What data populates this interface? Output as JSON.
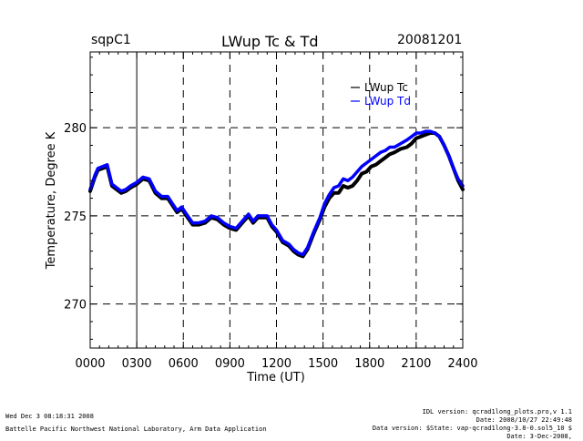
{
  "header": {
    "site": "sqpC1",
    "title": "LWup Tc & Td",
    "date": "20081201"
  },
  "chart_data": {
    "type": "line",
    "title": "LWup Tc & Td",
    "xlabel": "Time (UT)",
    "ylabel": "Temperature, Degree K",
    "xlim": [
      0,
      2400
    ],
    "ylim": [
      267.5,
      284.3
    ],
    "xticks": [
      0,
      300,
      600,
      900,
      1200,
      1500,
      1800,
      2100,
      2400
    ],
    "xtick_labels": [
      "0000",
      "0300",
      "0600",
      "0900",
      "1200",
      "1500",
      "1800",
      "2100",
      "2400"
    ],
    "yticks": [
      270,
      275,
      280
    ],
    "ytick_labels": [
      "270",
      "275",
      "280"
    ],
    "grid": true,
    "legend_position": "top-right",
    "series": [
      {
        "name": "LWup Tc",
        "color": "#000000",
        "x": [
          0,
          30,
          50,
          80,
          110,
          140,
          170,
          200,
          230,
          260,
          300,
          340,
          380,
          420,
          460,
          500,
          530,
          560,
          590,
          620,
          660,
          700,
          740,
          780,
          820,
          860,
          900,
          940,
          980,
          1020,
          1050,
          1080,
          1110,
          1140,
          1170,
          1200,
          1240,
          1280,
          1310,
          1340,
          1370,
          1400,
          1440,
          1480,
          1510,
          1540,
          1570,
          1600,
          1630,
          1660,
          1690,
          1720,
          1750,
          1780,
          1810,
          1840,
          1870,
          1900,
          1930,
          1960,
          2000,
          2040,
          2070,
          2100,
          2130,
          2160,
          2190,
          2220,
          2250,
          2280,
          2310,
          2340,
          2370,
          2400
        ],
        "y": [
          276.4,
          277.2,
          277.6,
          277.7,
          277.8,
          276.7,
          276.5,
          276.3,
          276.4,
          276.6,
          276.8,
          277.1,
          277.0,
          276.3,
          276.0,
          276.0,
          275.6,
          275.2,
          275.4,
          275.0,
          274.5,
          274.5,
          274.6,
          274.9,
          274.8,
          274.5,
          274.3,
          274.2,
          274.6,
          275.0,
          274.6,
          274.9,
          274.9,
          274.9,
          274.4,
          274.1,
          273.5,
          273.3,
          273.0,
          272.8,
          272.7,
          273.1,
          274.0,
          274.8,
          275.5,
          276.0,
          276.3,
          276.3,
          276.7,
          276.6,
          276.7,
          277.0,
          277.4,
          277.5,
          277.8,
          277.9,
          278.1,
          278.3,
          278.5,
          278.6,
          278.8,
          278.9,
          279.1,
          279.4,
          279.5,
          279.6,
          279.7,
          279.7,
          279.5,
          279.0,
          278.4,
          277.7,
          277.0,
          276.5
        ]
      },
      {
        "name": "LWup Td",
        "color": "#0000ff",
        "x": [
          0,
          30,
          50,
          80,
          110,
          140,
          170,
          200,
          230,
          260,
          300,
          340,
          380,
          420,
          460,
          500,
          530,
          560,
          590,
          620,
          660,
          700,
          740,
          780,
          820,
          860,
          900,
          940,
          980,
          1020,
          1050,
          1080,
          1110,
          1140,
          1170,
          1200,
          1240,
          1280,
          1310,
          1340,
          1370,
          1400,
          1440,
          1480,
          1510,
          1540,
          1570,
          1600,
          1630,
          1660,
          1690,
          1720,
          1750,
          1780,
          1810,
          1840,
          1870,
          1900,
          1930,
          1960,
          2000,
          2040,
          2070,
          2100,
          2130,
          2160,
          2190,
          2220,
          2250,
          2280,
          2310,
          2340,
          2370,
          2400
        ],
        "y": [
          276.5,
          277.3,
          277.7,
          277.8,
          277.9,
          276.8,
          276.6,
          276.4,
          276.5,
          276.7,
          276.9,
          277.2,
          277.1,
          276.4,
          276.1,
          276.1,
          275.7,
          275.3,
          275.5,
          275.1,
          274.6,
          274.6,
          274.7,
          275.0,
          274.9,
          274.6,
          274.4,
          274.3,
          274.7,
          275.1,
          274.7,
          275.0,
          275.0,
          275.0,
          274.5,
          274.2,
          273.6,
          273.4,
          273.1,
          272.9,
          272.8,
          273.2,
          274.1,
          274.9,
          275.7,
          276.2,
          276.6,
          276.7,
          277.1,
          277.0,
          277.2,
          277.5,
          277.8,
          278.0,
          278.2,
          278.4,
          278.6,
          278.7,
          278.9,
          278.9,
          279.1,
          279.3,
          279.5,
          279.7,
          279.7,
          279.8,
          279.8,
          279.7,
          279.5,
          279.0,
          278.4,
          277.7,
          277.1,
          276.7
        ]
      }
    ]
  },
  "footer": {
    "left_line1": "Wed Dec  3 08:18:31 2008",
    "left_line2": "Battelle Pacific Northwest National Laboratory, Arm Data Application",
    "right_line1": "IDL version: qcrad1long_plots.pro,v 1.1",
    "right_line2": "Date: 2008/10/27 22:49:48",
    "right_line3": "Data version: $State: vap-qcrad1long-3.8-0.sol5_10 $",
    "right_line4": "Date: 3-Dec-2008,"
  }
}
